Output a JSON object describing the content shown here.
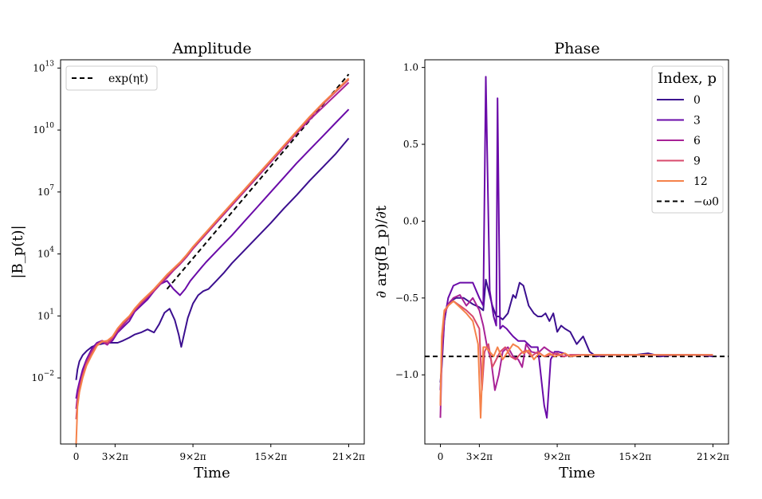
{
  "chart_data": [
    {
      "type": "line",
      "title": "Amplitude",
      "xlabel": "Time",
      "ylabel": "|B_p(t)|",
      "yscale": "log",
      "xlim": [
        -1.2,
        22.2
      ],
      "ylim": [
        -5.2,
        13.4
      ],
      "x_ticks": [
        0,
        3,
        9,
        15,
        21
      ],
      "x_tick_labels": [
        "0",
        "3×2π",
        "9×2π",
        "15×2π",
        "21×2π"
      ],
      "y_ticks": [
        -2,
        1,
        4,
        7,
        10,
        13
      ],
      "y_tick_labels": [
        "10",
        "10",
        "10",
        "10",
        "10",
        "10"
      ],
      "y_tick_exponents": [
        "−2",
        "1",
        "4",
        "7",
        "10",
        "13"
      ],
      "grid": false,
      "legend": "top-left",
      "legend_items": [
        "exp(ηt)"
      ],
      "series": [
        {
          "name": "exp(ηt)",
          "style": "dashed",
          "color": "#000000",
          "x": [
            7,
            21
          ],
          "log10_y": [
            2.3,
            12.7
          ]
        },
        {
          "name": "0",
          "color": "#3b0f8f",
          "x": [
            0,
            0.1,
            0.25,
            0.5,
            0.8,
            1.2,
            1.6,
            2,
            2.4,
            2.8,
            3.2,
            3.6,
            4.1,
            4.5,
            5,
            5.5,
            6,
            6.4,
            6.8,
            7.2,
            7.6,
            7.9,
            8.1,
            8.6,
            9,
            9.4,
            9.8,
            10.2,
            10.8,
            11.4,
            12,
            13,
            14,
            15,
            16,
            17,
            18,
            19,
            20,
            21
          ],
          "log10_y": [
            -2.1,
            -1.6,
            -1.2,
            -0.9,
            -0.7,
            -0.5,
            -0.4,
            -0.35,
            -0.3,
            -0.3,
            -0.3,
            -0.2,
            -0.05,
            0.1,
            0.2,
            0.35,
            0.2,
            0.6,
            1.15,
            1.35,
            0.8,
            0.1,
            -0.5,
            0.9,
            1.6,
            2.0,
            2.2,
            2.3,
            2.7,
            3.1,
            3.55,
            4.2,
            4.85,
            5.5,
            6.2,
            6.85,
            7.55,
            8.2,
            8.85,
            9.6
          ]
        },
        {
          "name": "3",
          "color": "#6a0ba8",
          "x": [
            0,
            0.1,
            0.25,
            0.5,
            0.8,
            1.2,
            1.6,
            2,
            2.4,
            2.8,
            3.2,
            3.6,
            4.1,
            4.5,
            5,
            5.5,
            6,
            6.5,
            7,
            7.5,
            8,
            8.4,
            8.8,
            9.2,
            9.6,
            10,
            11,
            12,
            13,
            14,
            15,
            16,
            17,
            18,
            19,
            20,
            21
          ],
          "log10_y": [
            -3,
            -2.6,
            -2.2,
            -1.6,
            -1.1,
            -0.6,
            -0.3,
            -0.2,
            -0.35,
            -0.2,
            0.2,
            0.45,
            0.75,
            1.2,
            1.5,
            1.8,
            2.2,
            2.55,
            2.7,
            2.3,
            2.0,
            2.3,
            2.7,
            3.0,
            3.3,
            3.6,
            4.25,
            4.9,
            5.6,
            6.3,
            7.0,
            7.7,
            8.4,
            9.05,
            9.7,
            10.35,
            11.0
          ]
        },
        {
          "name": "6",
          "color": "#a82296",
          "x": [
            0,
            0.1,
            0.25,
            0.5,
            0.8,
            1.2,
            1.6,
            2,
            2.4,
            2.8,
            3.2,
            3.6,
            4.1,
            4.5,
            5,
            5.5,
            6,
            6.5,
            7,
            7.5,
            8,
            8.5,
            9,
            9.5,
            10,
            11,
            12,
            13,
            14,
            15,
            16,
            17,
            18,
            19,
            20,
            21
          ],
          "log10_y": [
            -3.5,
            -2.9,
            -2.4,
            -1.8,
            -1.2,
            -0.7,
            -0.35,
            -0.25,
            -0.4,
            -0.1,
            0.25,
            0.55,
            0.9,
            1.25,
            1.6,
            1.9,
            2.2,
            2.55,
            2.85,
            3.2,
            3.5,
            3.85,
            4.25,
            4.6,
            4.95,
            5.65,
            6.35,
            7.05,
            7.75,
            8.45,
            9.15,
            9.85,
            10.5,
            11.1,
            11.7,
            12.3
          ]
        },
        {
          "name": "9",
          "color": "#d84a6c",
          "x": [
            0,
            0.1,
            0.25,
            0.5,
            0.8,
            1.2,
            1.6,
            2,
            2.4,
            2.8,
            3.2,
            3.6,
            4.1,
            4.5,
            5,
            5.5,
            6,
            6.5,
            7,
            7.5,
            8,
            8.5,
            9,
            9.5,
            10,
            11,
            12,
            13,
            14,
            15,
            16,
            17,
            18,
            19,
            20,
            21
          ],
          "log10_y": [
            -4,
            -3.2,
            -2.6,
            -1.9,
            -1.3,
            -0.8,
            -0.4,
            -0.2,
            -0.3,
            -0.05,
            0.35,
            0.65,
            0.95,
            1.3,
            1.65,
            1.95,
            2.25,
            2.6,
            2.95,
            3.25,
            3.55,
            3.9,
            4.3,
            4.65,
            5.0,
            5.7,
            6.4,
            7.1,
            7.8,
            8.5,
            9.2,
            9.9,
            10.6,
            11.25,
            11.85,
            12.45
          ]
        },
        {
          "name": "12",
          "color": "#f5824a",
          "x": [
            0,
            0.1,
            0.25,
            0.5,
            0.8,
            1.2,
            1.6,
            2,
            2.4,
            2.8,
            3.2,
            3.6,
            4.1,
            4.5,
            5,
            5.5,
            6,
            6.5,
            7,
            7.5,
            8,
            8.5,
            9,
            9.5,
            10,
            11,
            12,
            13,
            14,
            15,
            16,
            17,
            18,
            19,
            20,
            21
          ],
          "log10_y": [
            -5.2,
            -3.4,
            -2.7,
            -2.0,
            -1.4,
            -0.9,
            -0.45,
            -0.25,
            -0.2,
            0.0,
            0.4,
            0.7,
            1.0,
            1.35,
            1.7,
            2.0,
            2.3,
            2.65,
            3.0,
            3.3,
            3.6,
            3.95,
            4.35,
            4.7,
            5.05,
            5.75,
            6.45,
            7.15,
            7.85,
            8.55,
            9.25,
            9.95,
            10.65,
            11.3,
            11.9,
            12.5
          ]
        }
      ]
    },
    {
      "type": "line",
      "title": "Phase",
      "xlabel": "Time",
      "ylabel": "∂ arg(B_p)/∂t",
      "xlim": [
        -1.2,
        22.2
      ],
      "ylim": [
        -1.45,
        1.05
      ],
      "x_ticks": [
        0,
        3,
        9,
        15,
        21
      ],
      "x_tick_labels": [
        "0",
        "3×2π",
        "9×2π",
        "15×2π",
        "21×2π"
      ],
      "y_ticks": [
        -1.0,
        -0.5,
        0.0,
        0.5,
        1.0
      ],
      "y_tick_labels": [
        "−1.0",
        "−0.5",
        "0.0",
        "0.5",
        "1.0"
      ],
      "grid": false,
      "legend": "top-right",
      "legend_title": "Index, p",
      "legend_items": [
        "0",
        "3",
        "6",
        "9",
        "12",
        "−ω0"
      ],
      "series": [
        {
          "name": "−ω0",
          "style": "dashed",
          "color": "#000000",
          "x": [
            -1.2,
            22.2
          ],
          "y": [
            -0.88,
            -0.88
          ]
        },
        {
          "name": "0",
          "color": "#3b0f8f",
          "x": [
            0,
            0.1,
            0.3,
            0.5,
            0.8,
            1.2,
            1.8,
            2.5,
            3,
            3.3,
            3.5,
            4,
            4.3,
            4.5,
            4.8,
            5.2,
            5.6,
            5.8,
            6.1,
            6.4,
            6.8,
            7.2,
            7.5,
            7.8,
            8.1,
            8.4,
            8.7,
            9,
            9.3,
            9.6,
            10,
            10.5,
            11,
            11.5,
            12,
            13,
            14,
            15,
            16,
            17,
            18,
            19,
            20,
            21
          ],
          "y": [
            -1.05,
            -0.95,
            -0.65,
            -0.55,
            -0.52,
            -0.5,
            -0.5,
            -0.54,
            -0.56,
            -0.58,
            -0.38,
            -0.55,
            -0.62,
            -0.62,
            -0.64,
            -0.6,
            -0.48,
            -0.5,
            -0.4,
            -0.42,
            -0.55,
            -0.6,
            -0.62,
            -0.62,
            -0.6,
            -0.65,
            -0.6,
            -0.72,
            -0.68,
            -0.7,
            -0.72,
            -0.8,
            -0.75,
            -0.85,
            -0.88,
            -0.87,
            -0.87,
            -0.87,
            -0.86,
            -0.88,
            -0.87,
            -0.87,
            -0.87,
            -0.88
          ]
        },
        {
          "name": "3",
          "color": "#6a0ba8",
          "x": [
            0,
            0.1,
            0.3,
            0.6,
            1,
            1.5,
            2,
            2.5,
            3,
            3.3,
            3.5,
            3.8,
            4.1,
            4.3,
            4.4,
            4.6,
            4.8,
            5.1,
            5.3,
            5.6,
            6,
            6.5,
            7,
            7.5,
            8,
            8.2,
            8.5,
            8.8,
            9.1,
            9.5,
            10,
            11,
            12,
            14,
            16,
            18,
            21
          ],
          "y": [
            -1.1,
            -0.9,
            -0.65,
            -0.5,
            -0.42,
            -0.4,
            -0.4,
            -0.4,
            -0.5,
            -0.55,
            0.94,
            -0.45,
            -0.62,
            -0.68,
            0.8,
            -0.7,
            -0.68,
            -0.7,
            -0.72,
            -0.75,
            -0.78,
            -0.78,
            -0.82,
            -0.82,
            -1.2,
            -1.28,
            -0.9,
            -0.85,
            -0.85,
            -0.86,
            -0.88,
            -0.87,
            -0.87,
            -0.87,
            -0.87,
            -0.87,
            -0.87
          ]
        },
        {
          "name": "6",
          "color": "#a82296",
          "x": [
            0,
            0.1,
            0.3,
            0.6,
            1,
            1.5,
            2,
            2.5,
            3,
            3.3,
            3.6,
            3.9,
            4.2,
            4.5,
            4.8,
            5.2,
            5.6,
            6,
            6.3,
            6.6,
            7,
            7.5,
            8,
            8.5,
            9,
            9.5,
            10,
            11,
            12,
            14,
            16,
            18,
            21
          ],
          "y": [
            -1.28,
            -0.9,
            -0.6,
            -0.54,
            -0.5,
            -0.48,
            -0.55,
            -0.5,
            -0.58,
            -0.68,
            -0.82,
            -0.9,
            -1.1,
            -1.0,
            -0.85,
            -0.82,
            -0.88,
            -0.9,
            -0.95,
            -0.8,
            -0.85,
            -0.86,
            -0.82,
            -0.85,
            -0.87,
            -0.88,
            -0.87,
            -0.87,
            -0.87,
            -0.87,
            -0.87,
            -0.87,
            -0.87
          ]
        },
        {
          "name": "9",
          "color": "#d84a6c",
          "x": [
            0,
            0.1,
            0.3,
            0.6,
            1,
            1.5,
            2,
            2.5,
            3,
            3.2,
            3.4,
            3.7,
            4,
            4.3,
            4.6,
            5,
            5.4,
            5.8,
            6.2,
            6.6,
            7,
            7.5,
            8,
            8.5,
            9,
            9.5,
            10,
            11,
            12,
            14,
            16,
            18,
            21
          ],
          "y": [
            -1.2,
            -0.8,
            -0.6,
            -0.55,
            -0.52,
            -0.55,
            -0.58,
            -0.62,
            -0.7,
            -1.1,
            -0.85,
            -0.8,
            -0.95,
            -0.9,
            -0.85,
            -0.82,
            -0.88,
            -0.9,
            -0.86,
            -0.84,
            -0.88,
            -0.85,
            -0.88,
            -0.87,
            -0.86,
            -0.88,
            -0.87,
            -0.87,
            -0.87,
            -0.87,
            -0.87,
            -0.87,
            -0.87
          ]
        },
        {
          "name": "12",
          "color": "#f5824a",
          "x": [
            0,
            0.1,
            0.3,
            0.6,
            1,
            1.5,
            2,
            2.5,
            2.9,
            3.1,
            3.3,
            3.5,
            3.8,
            4.1,
            4.4,
            4.8,
            5.2,
            5.6,
            6,
            6.4,
            6.8,
            7.2,
            7.6,
            8,
            8.4,
            8.8,
            9.2,
            9.6,
            10,
            11,
            12,
            14,
            16,
            18,
            21
          ],
          "y": [
            -1.2,
            -0.75,
            -0.58,
            -0.55,
            -0.52,
            -0.56,
            -0.6,
            -0.65,
            -0.8,
            -1.28,
            -0.82,
            -0.82,
            -0.85,
            -0.88,
            -0.82,
            -0.9,
            -0.85,
            -0.8,
            -0.82,
            -0.86,
            -0.84,
            -0.9,
            -0.86,
            -0.88,
            -0.86,
            -0.88,
            -0.87,
            -0.86,
            -0.88,
            -0.87,
            -0.87,
            -0.87,
            -0.87,
            -0.87,
            -0.87
          ]
        }
      ]
    }
  ]
}
